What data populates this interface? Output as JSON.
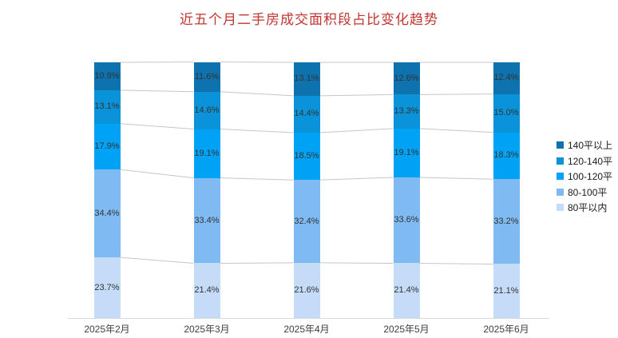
{
  "title": {
    "text": "近五个月二手房成交面积段占比变化趋势",
    "color": "#c23531"
  },
  "chart_data": {
    "type": "bar",
    "subtype": "stacked-100-percent-column-with-series-lines",
    "title": "近五个月二手房成交面积段占比变化趋势",
    "categories": [
      "2025年2月",
      "2025年3月",
      "2025年4月",
      "2025年5月",
      "2025年6月"
    ],
    "series": [
      {
        "name": "140平以上",
        "color": "#0e72ae",
        "values": [
          10.9,
          11.6,
          13.1,
          12.6,
          12.4
        ]
      },
      {
        "name": "120-140平",
        "color": "#0a93d8",
        "values": [
          13.1,
          14.6,
          14.4,
          13.3,
          15.0
        ]
      },
      {
        "name": "100-120平",
        "color": "#00a2f5",
        "values": [
          17.9,
          19.1,
          18.5,
          19.1,
          18.3
        ]
      },
      {
        "name": "80-100平",
        "color": "#7fbaf3",
        "values": [
          34.4,
          33.4,
          32.4,
          33.6,
          33.2
        ]
      },
      {
        "name": "80平以内",
        "color": "#c4dcf8",
        "values": [
          23.7,
          21.4,
          21.6,
          21.4,
          21.1
        ]
      }
    ],
    "stack_order": "first-series-on-top",
    "value_suffix": "%",
    "label_color": "#333333",
    "xlabel": "",
    "ylabel": "",
    "y_axis_visible": false,
    "grid": false,
    "legend_position": "right",
    "connector_line_color": "#c6c6c6",
    "axis_line_color": "#d9d9d9",
    "background_color": "#ffffff"
  }
}
